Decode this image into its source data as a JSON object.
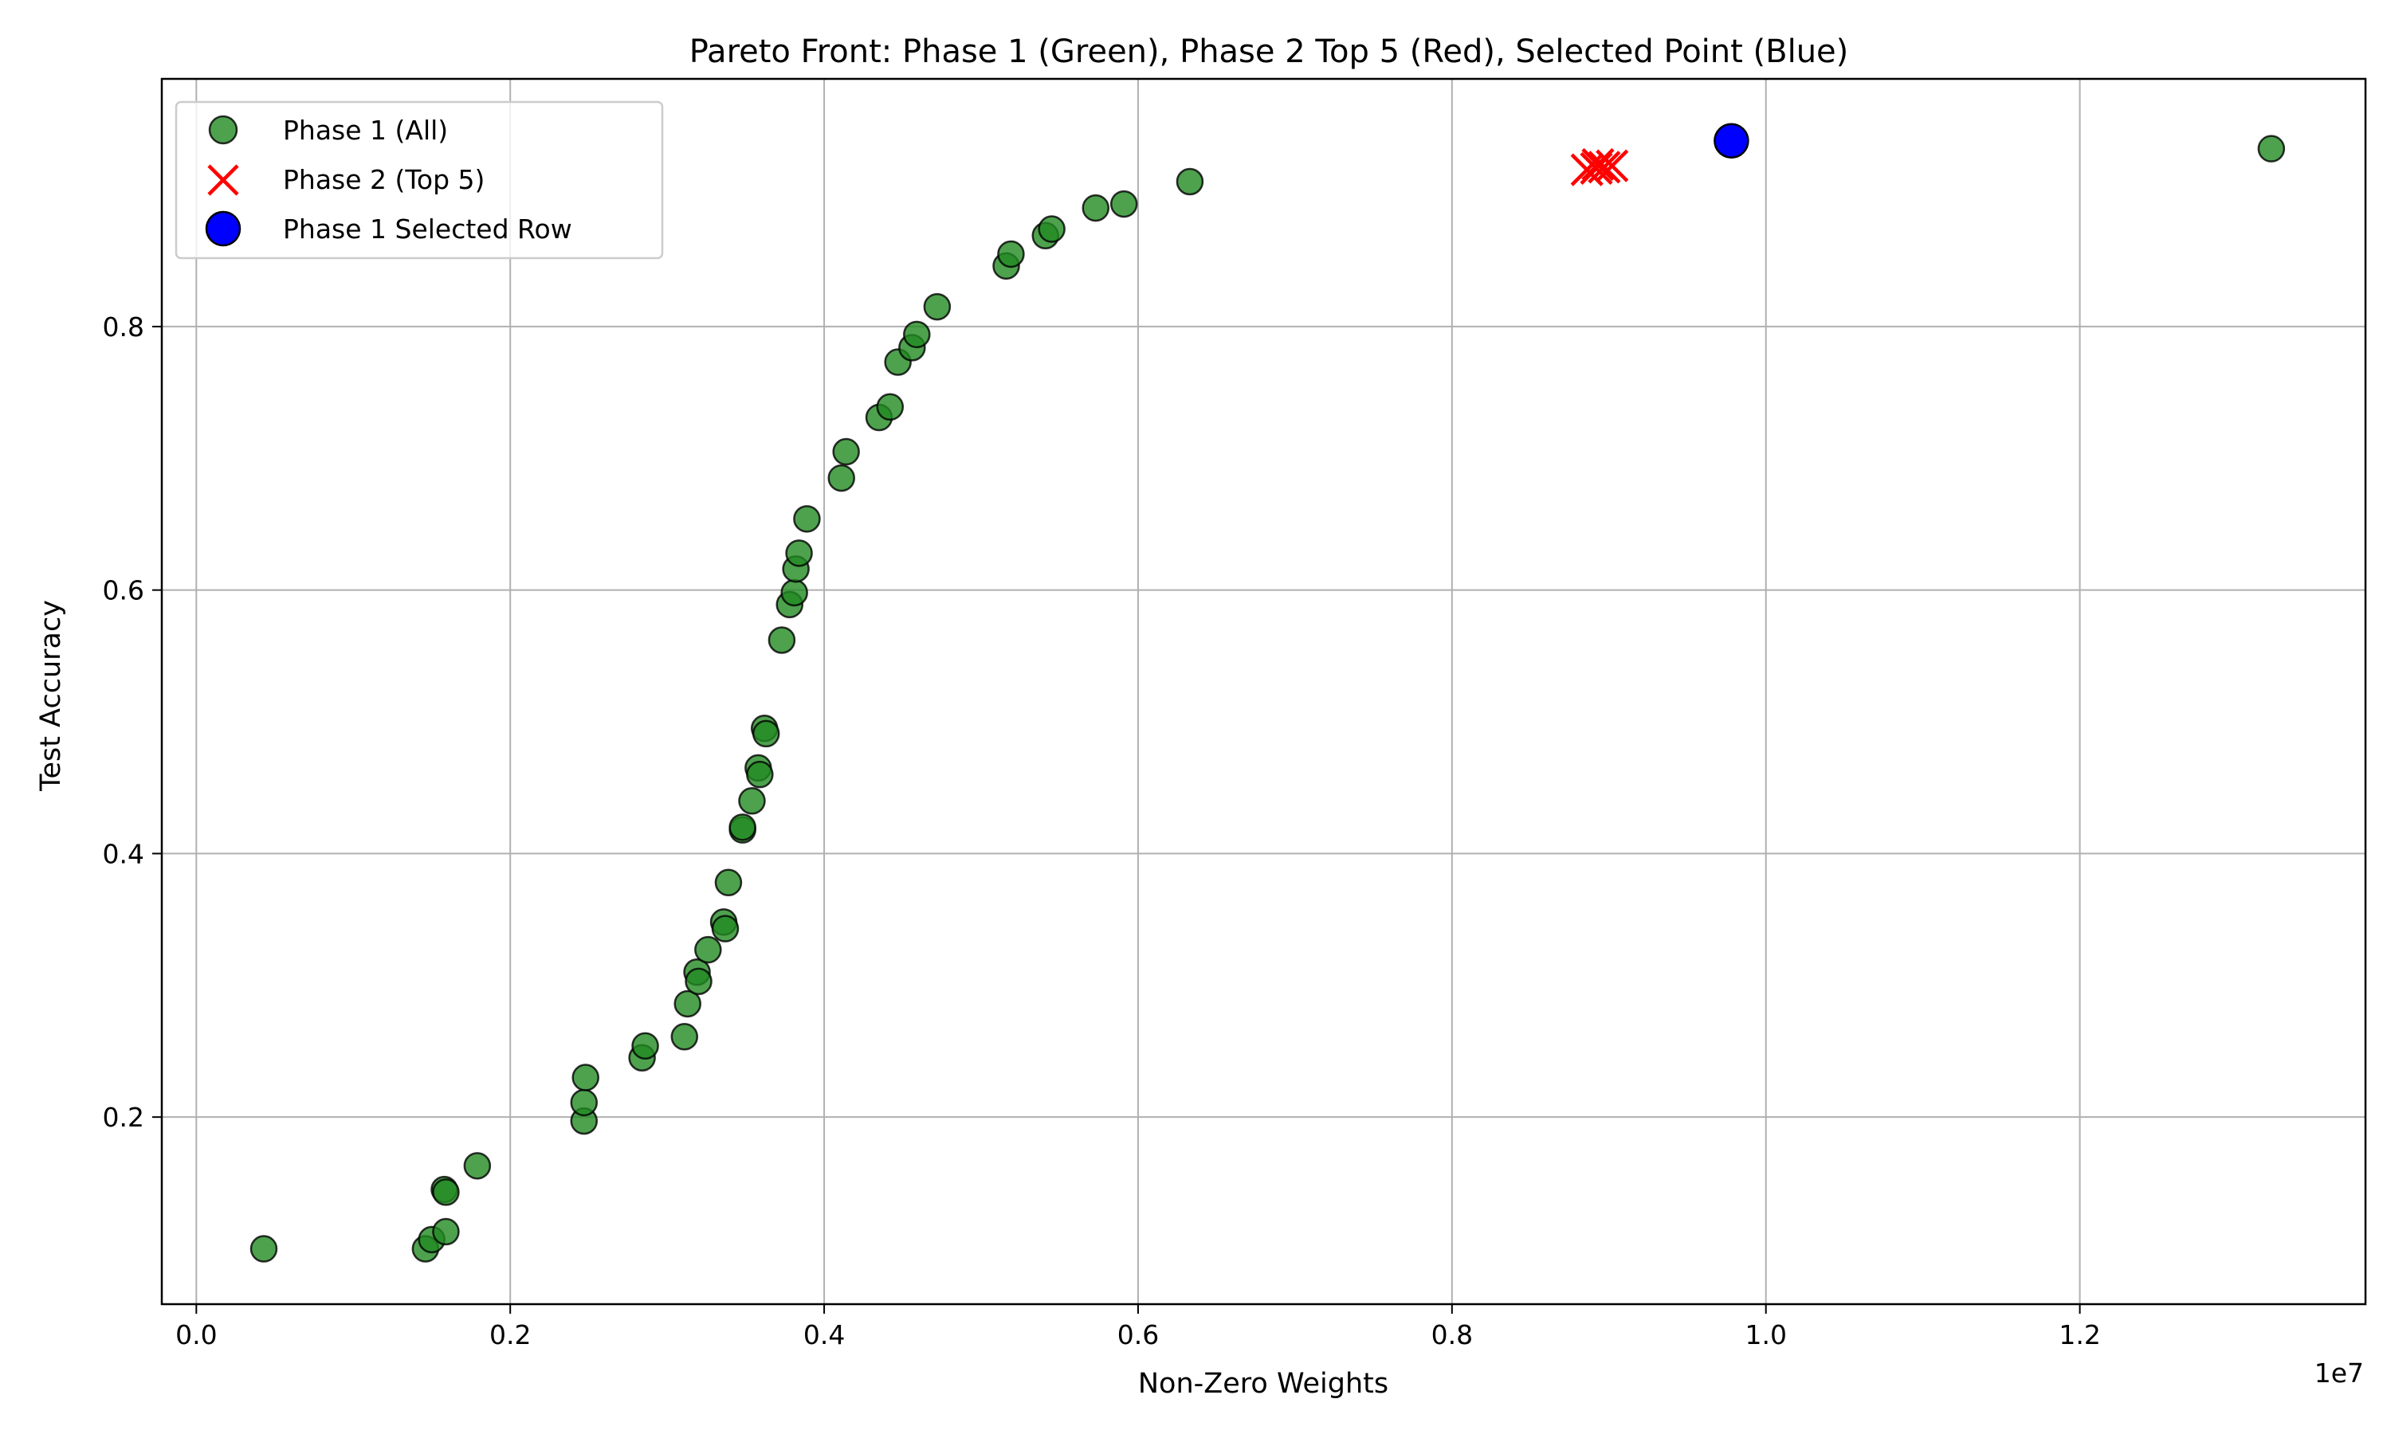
{
  "chart_data": {
    "type": "scatter",
    "title": "Pareto Front: Phase 1 (Green), Phase 2 Top 5 (Red), Selected Point (Blue)",
    "xlabel": "Non-Zero Weights",
    "ylabel": "Test Accuracy",
    "x_offset_text": "1e7",
    "x_multiplier": 10000000,
    "xlim": [
      -0.022,
      1.382
    ],
    "ylim": [
      0.058,
      0.988
    ],
    "xticks": [
      0.0,
      0.2,
      0.4,
      0.6,
      0.8,
      1.0,
      1.2
    ],
    "xtick_labels": [
      "0.0",
      "0.2",
      "0.4",
      "0.6",
      "0.8",
      "1.0",
      "1.2"
    ],
    "yticks": [
      0.2,
      0.4,
      0.6,
      0.8
    ],
    "ytick_labels": [
      "0.2",
      "0.4",
      "0.6",
      "0.8"
    ],
    "grid": true,
    "legend_position": "top-left",
    "series": [
      {
        "name": "Phase 1 (All)",
        "marker": "circle",
        "color": "#228b22",
        "edge_color": "#000000",
        "x": [
          0.043,
          0.146,
          0.15,
          0.159,
          0.158,
          0.159,
          0.179,
          0.247,
          0.247,
          0.248,
          0.284,
          0.286,
          0.311,
          0.313,
          0.319,
          0.32,
          0.326,
          0.336,
          0.337,
          0.339,
          0.348,
          0.348,
          0.354,
          0.358,
          0.359,
          0.362,
          0.363,
          0.373,
          0.378,
          0.381,
          0.382,
          0.384,
          0.389,
          0.411,
          0.414,
          0.435,
          0.442,
          0.447,
          0.456,
          0.459,
          0.472,
          0.516,
          0.519,
          0.541,
          0.545,
          0.573,
          0.591,
          0.633,
          1.322
        ],
        "y": [
          0.1,
          0.1,
          0.107,
          0.113,
          0.145,
          0.143,
          0.163,
          0.197,
          0.211,
          0.23,
          0.245,
          0.254,
          0.261,
          0.286,
          0.31,
          0.303,
          0.327,
          0.348,
          0.343,
          0.378,
          0.418,
          0.42,
          0.44,
          0.465,
          0.46,
          0.495,
          0.491,
          0.562,
          0.589,
          0.598,
          0.616,
          0.628,
          0.654,
          0.685,
          0.705,
          0.731,
          0.739,
          0.773,
          0.784,
          0.794,
          0.815,
          0.846,
          0.855,
          0.869,
          0.874,
          0.89,
          0.893,
          0.91,
          0.935
        ]
      },
      {
        "name": "Phase 2 (Top 5)",
        "marker": "x",
        "color": "#ff0000",
        "x": [
          0.886,
          0.893,
          0.897,
          0.902,
          0.892
        ],
        "y": [
          0.919,
          0.923,
          0.921,
          0.922,
          0.92
        ]
      },
      {
        "name": "Phase 1 Selected Row",
        "marker": "circle",
        "color": "#0000ff",
        "edge_color": "#000000",
        "x": [
          0.978
        ],
        "y": [
          0.941
        ]
      }
    ]
  }
}
